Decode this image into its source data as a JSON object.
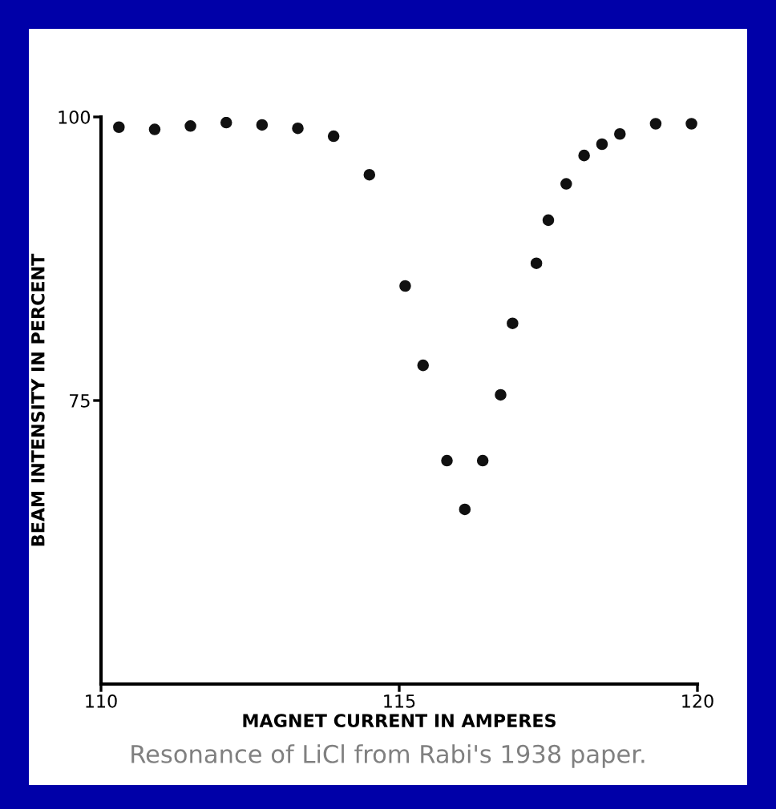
{
  "chart_data": {
    "type": "scatter",
    "xlabel": "MAGNET CURRENT IN AMPERES",
    "ylabel": "BEAM INTENSITY IN PERCENT",
    "annotations": [
      "Resonance of LiCl from Rabi's 1938 paper."
    ],
    "x": [
      110.3,
      110.9,
      111.5,
      112.1,
      112.7,
      113.3,
      113.9,
      114.5,
      115.1,
      115.4,
      115.8,
      116.1,
      116.4,
      116.7,
      116.9,
      117.3,
      117.5,
      117.8,
      118.1,
      118.4,
      118.7,
      119.3,
      119.9
    ],
    "series": [
      {
        "color": "#111111",
        "values": [
          99.1,
          98.9,
          99.2,
          99.5,
          99.3,
          99.0,
          98.3,
          94.9,
          85.1,
          78.1,
          69.7,
          65.4,
          69.7,
          75.5,
          81.8,
          87.1,
          90.9,
          94.1,
          96.6,
          97.6,
          98.5,
          99.4,
          99.4
        ]
      }
    ],
    "xlim": [
      110,
      120
    ],
    "ylim": [
      50,
      100
    ],
    "xticks": [
      110,
      115,
      120
    ],
    "yticks": [
      75,
      100
    ],
    "marker": "circle",
    "grid": false,
    "legend": false
  }
}
